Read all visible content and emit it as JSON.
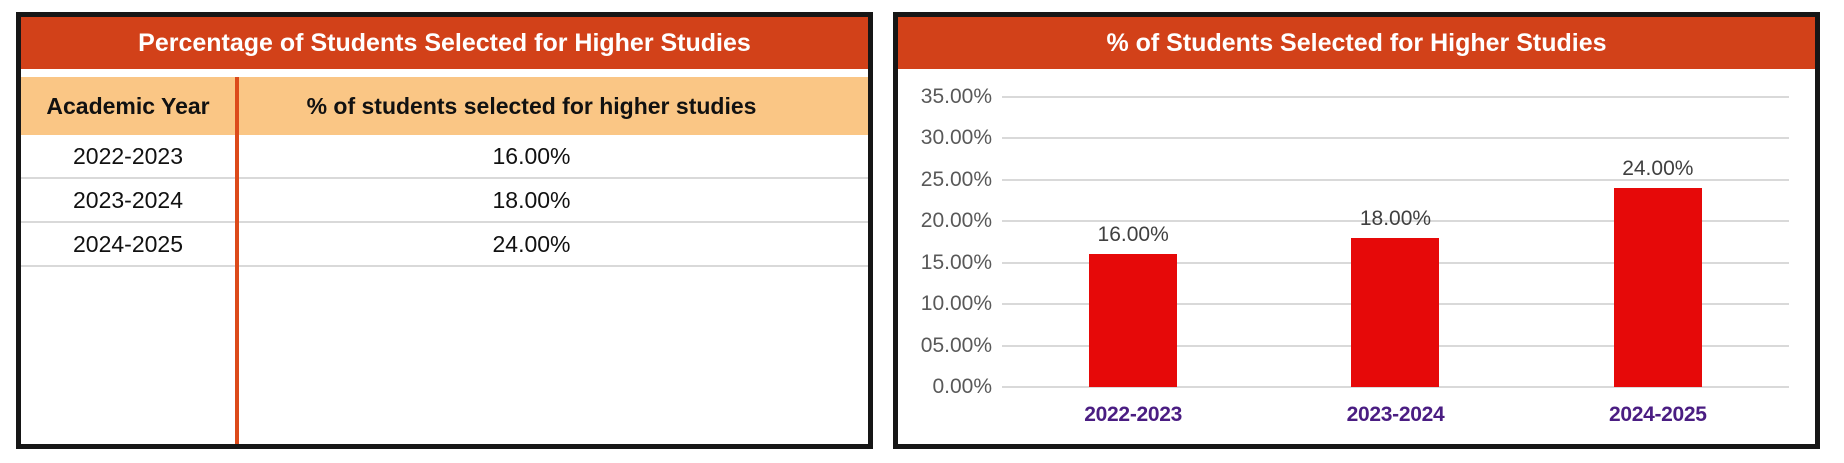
{
  "table_panel": {
    "title": "Percentage of Students Selected for Higher Studies",
    "columns": [
      "Academic Year",
      "% of students selected for higher studies"
    ],
    "rows": [
      {
        "year": "2022-2023",
        "value": "16.00%"
      },
      {
        "year": "2023-2024",
        "value": "18.00%"
      },
      {
        "year": "2024-2025",
        "value": "24.00%"
      }
    ]
  },
  "chart_panel": {
    "title": "% of Students Selected for Higher Studies"
  },
  "chart_data": {
    "type": "bar",
    "title": "% of Students Selected for Higher Studies",
    "categories": [
      "2022-2023",
      "2023-2024",
      "2024-2025"
    ],
    "values": [
      16,
      18,
      24
    ],
    "data_labels": [
      "16.00%",
      "18.00%",
      "24.00%"
    ],
    "y_ticks": [
      "35.00%",
      "30.00%",
      "25.00%",
      "20.00%",
      "15.00%",
      "10.00%",
      "05.00%",
      "0.00%"
    ],
    "y_tick_values": [
      35,
      30,
      25,
      20,
      15,
      10,
      5,
      0
    ],
    "ylim": [
      0,
      35
    ],
    "xlabel": "",
    "ylabel": "",
    "grid": true,
    "legend": "none",
    "bar_color": "#e60909"
  },
  "colors": {
    "title_bar": "#d24119",
    "table_header_bg": "#fac685",
    "column_divider": "#dc4a1a",
    "bar_fill": "#e60909",
    "gridline": "#d9d9d9",
    "y_tick_text": "#595959",
    "data_label_text": "#404040",
    "x_tick_text": "#4a1d82",
    "panel_border": "#161616"
  }
}
